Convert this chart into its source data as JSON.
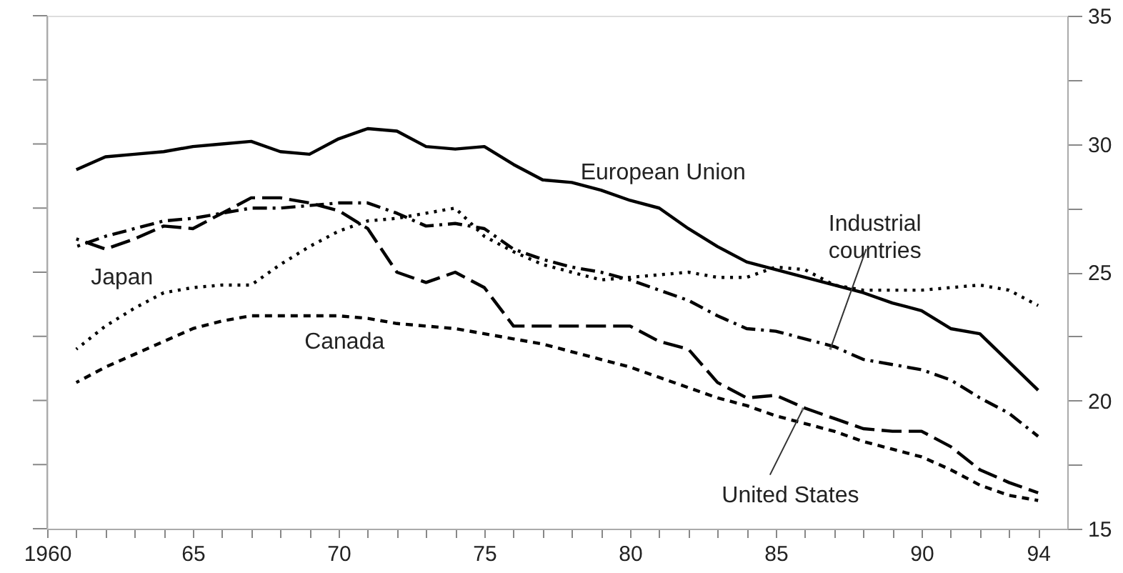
{
  "chart_data": {
    "type": "line",
    "x": [
      1961,
      1962,
      1963,
      1964,
      1965,
      1966,
      1967,
      1968,
      1969,
      1970,
      1971,
      1972,
      1973,
      1974,
      1975,
      1976,
      1977,
      1978,
      1979,
      1980,
      1981,
      1982,
      1983,
      1984,
      1985,
      1986,
      1987,
      1988,
      1989,
      1990,
      1991,
      1992,
      1993,
      1994
    ],
    "xlim": [
      1960,
      1995
    ],
    "xticks": [
      {
        "value": 1960,
        "label": "1960"
      },
      {
        "value": 1961,
        "label": null
      },
      {
        "value": 1962,
        "label": null
      },
      {
        "value": 1963,
        "label": null
      },
      {
        "value": 1964,
        "label": null
      },
      {
        "value": 1965,
        "label": "65"
      },
      {
        "value": 1966,
        "label": null
      },
      {
        "value": 1967,
        "label": null
      },
      {
        "value": 1968,
        "label": null
      },
      {
        "value": 1969,
        "label": null
      },
      {
        "value": 1970,
        "label": "70"
      },
      {
        "value": 1971,
        "label": null
      },
      {
        "value": 1972,
        "label": null
      },
      {
        "value": 1973,
        "label": null
      },
      {
        "value": 1974,
        "label": null
      },
      {
        "value": 1975,
        "label": "75"
      },
      {
        "value": 1976,
        "label": null
      },
      {
        "value": 1977,
        "label": null
      },
      {
        "value": 1978,
        "label": null
      },
      {
        "value": 1979,
        "label": null
      },
      {
        "value": 1980,
        "label": "80"
      },
      {
        "value": 1981,
        "label": null
      },
      {
        "value": 1982,
        "label": null
      },
      {
        "value": 1983,
        "label": null
      },
      {
        "value": 1984,
        "label": null
      },
      {
        "value": 1985,
        "label": "85"
      },
      {
        "value": 1986,
        "label": null
      },
      {
        "value": 1987,
        "label": null
      },
      {
        "value": 1988,
        "label": null
      },
      {
        "value": 1989,
        "label": null
      },
      {
        "value": 1990,
        "label": "90"
      },
      {
        "value": 1991,
        "label": null
      },
      {
        "value": 1992,
        "label": null
      },
      {
        "value": 1993,
        "label": null
      },
      {
        "value": 1994,
        "label": "94"
      }
    ],
    "ylim": [
      15,
      35
    ],
    "yticks": [
      15,
      {
        "value": 17.5,
        "label": null
      },
      20,
      {
        "value": 22.5,
        "label": null
      },
      25,
      {
        "value": 27.5,
        "label": null
      },
      30,
      {
        "value": 32.5,
        "label": null
      },
      35
    ],
    "grid": false,
    "marker": "none",
    "series": [
      {
        "name": "European Union",
        "color": "#000000",
        "line_style": "solid",
        "values": [
          29.0,
          29.5,
          29.6,
          29.7,
          29.9,
          30.0,
          30.1,
          29.7,
          29.6,
          30.2,
          30.6,
          30.5,
          29.9,
          29.8,
          29.9,
          29.2,
          28.6,
          28.5,
          28.2,
          27.8,
          27.5,
          26.7,
          26.0,
          25.4,
          25.1,
          24.8,
          24.5,
          24.2,
          23.8,
          23.5,
          22.8,
          22.6,
          21.5,
          20.4
        ]
      },
      {
        "name": "Industrial countries",
        "color": "#000000",
        "line_style": "dashdot",
        "values": [
          26.0,
          26.4,
          26.7,
          27.0,
          27.1,
          27.3,
          27.5,
          27.5,
          27.6,
          27.7,
          27.7,
          27.3,
          26.8,
          26.9,
          26.7,
          25.9,
          25.5,
          25.2,
          25.0,
          24.7,
          24.3,
          23.9,
          23.3,
          22.8,
          22.7,
          22.4,
          22.1,
          21.6,
          21.4,
          21.2,
          20.8,
          20.1,
          19.5,
          18.6
        ]
      },
      {
        "name": "Japan",
        "color": "#000000",
        "line_style": "dotted",
        "values": [
          22.0,
          22.9,
          23.6,
          24.2,
          24.4,
          24.5,
          24.5,
          25.3,
          26.0,
          26.6,
          27.0,
          27.1,
          27.3,
          27.5,
          26.4,
          25.8,
          25.3,
          25.0,
          24.7,
          24.8,
          24.9,
          25.0,
          24.8,
          24.8,
          25.2,
          25.1,
          24.5,
          24.3,
          24.3,
          24.3,
          24.4,
          24.5,
          24.3,
          23.7
        ]
      },
      {
        "name": "Canada",
        "color": "#000000",
        "line_style": "dashed",
        "values": [
          20.7,
          21.3,
          21.8,
          22.3,
          22.8,
          23.1,
          23.3,
          23.3,
          23.3,
          23.3,
          23.2,
          23.0,
          22.9,
          22.8,
          22.6,
          22.4,
          22.2,
          21.9,
          21.6,
          21.3,
          20.9,
          20.5,
          20.1,
          19.8,
          19.4,
          19.1,
          18.8,
          18.4,
          18.1,
          17.8,
          17.3,
          16.7,
          16.3,
          16.1
        ]
      },
      {
        "name": "United States",
        "color": "#000000",
        "line_style": "longdash",
        "values": [
          26.3,
          25.9,
          26.3,
          26.8,
          26.7,
          27.3,
          27.9,
          27.9,
          27.7,
          27.4,
          26.7,
          25.0,
          24.6,
          25.0,
          24.4,
          22.9,
          22.9,
          22.9,
          22.9,
          22.9,
          22.3,
          22.0,
          20.7,
          20.1,
          20.2,
          19.7,
          19.3,
          18.9,
          18.8,
          18.8,
          18.2,
          17.3,
          16.8,
          16.4
        ]
      }
    ]
  }
}
